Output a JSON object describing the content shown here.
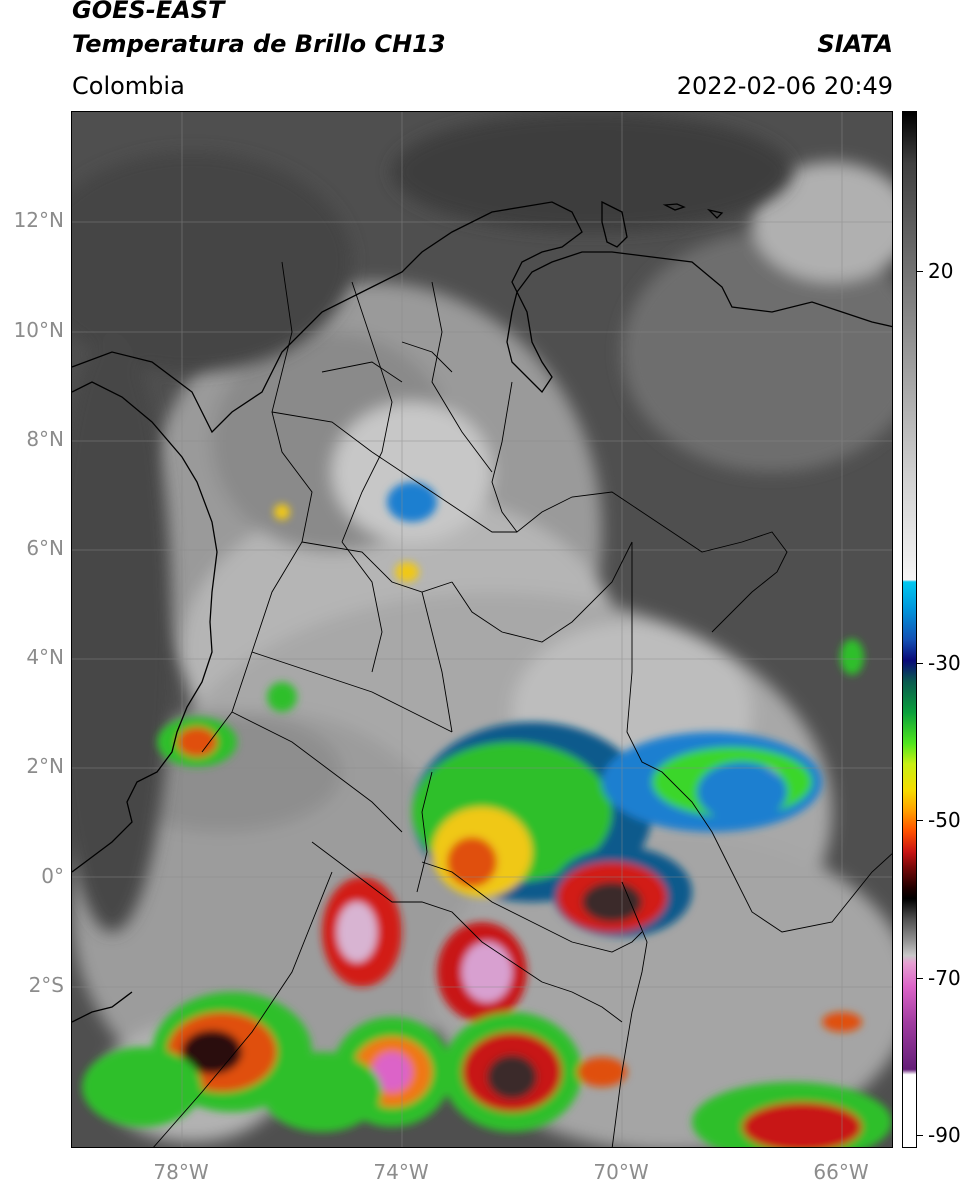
{
  "header": {
    "satellite": "GOES-EAST",
    "product": "Temperatura de Brillo CH13",
    "agency": "SIATA",
    "region": "Colombia",
    "datetime": "2022-02-06 20:49"
  },
  "map": {
    "lat_labels": [
      "12°N",
      "10°N",
      "8°N",
      "6°N",
      "4°N",
      "2°N",
      "0°",
      "2°S"
    ],
    "lon_labels": [
      "78°W",
      "74°W",
      "70°W",
      "66°W"
    ],
    "extent": {
      "lon_min": -80,
      "lon_max": -65,
      "lat_min": -5,
      "lat_max": 14
    }
  },
  "colorbar": {
    "labels": [
      "20",
      "-30",
      "-50",
      "-70",
      "-90"
    ]
  },
  "colors": {
    "cold_cloud_tops": "#e6a0d2",
    "deep_convection": "#c81414",
    "moderate_convection": "#50e61e"
  }
}
